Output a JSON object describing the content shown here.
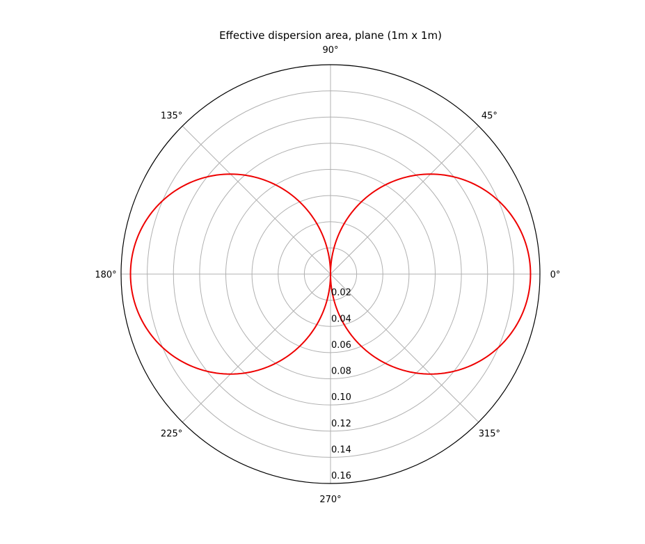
{
  "chart_data": {
    "type": "line",
    "projection": "polar",
    "title": "Effective dispersion area, plane (1m x 1m)",
    "theta_tick_labels": [
      "0°",
      "45°",
      "90°",
      "135°",
      "180°",
      "225°",
      "270°",
      "315°"
    ],
    "theta_ticks_deg": [
      0,
      45,
      90,
      135,
      180,
      225,
      270,
      315
    ],
    "r_tick_labels": [
      "0.02",
      "0.04",
      "0.06",
      "0.08",
      "0.10",
      "0.12",
      "0.14",
      "0.16"
    ],
    "r_ticks": [
      0.02,
      0.04,
      0.06,
      0.08,
      0.1,
      0.12,
      0.14,
      0.16
    ],
    "rlim": [
      0,
      0.16
    ],
    "r_label_position": "270°",
    "grid": true,
    "series": [
      {
        "color": "#ee0000",
        "theta_deg": [
          0,
          15,
          30,
          45,
          60,
          75,
          90,
          105,
          120,
          135,
          150,
          165,
          180,
          195,
          210,
          225,
          240,
          255,
          270,
          285,
          300,
          315,
          330,
          345,
          360
        ],
        "r": [
          0.1528,
          0.1476,
          0.1323,
          0.108,
          0.0764,
          0.0395,
          0.0,
          0.0395,
          0.0764,
          0.108,
          0.1323,
          0.1476,
          0.1528,
          0.1476,
          0.1323,
          0.108,
          0.0764,
          0.0395,
          0.0,
          0.0395,
          0.0764,
          0.108,
          0.1323,
          0.1476,
          0.1528
        ]
      }
    ]
  },
  "colors": {
    "curve": "#ee0000",
    "grid": "#b0b0b0",
    "outer_circle": "#000000"
  }
}
